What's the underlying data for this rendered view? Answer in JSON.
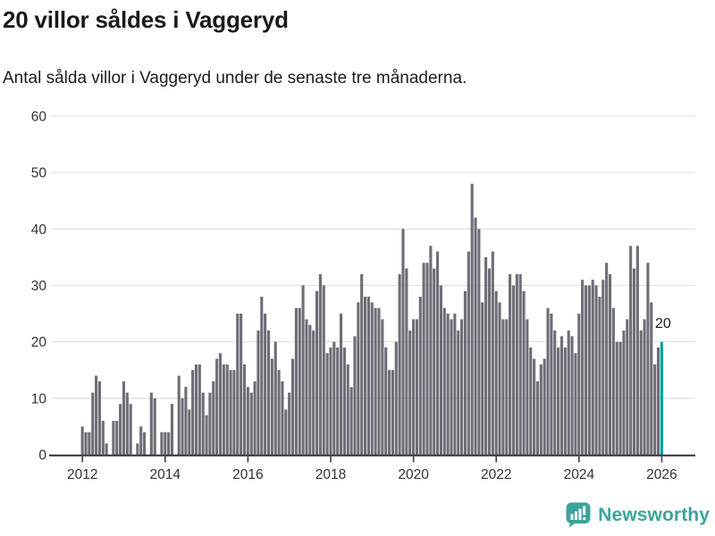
{
  "header": {
    "title": "20 villor såldes i Vaggeryd",
    "subtitle": "Antal sålda villor i Vaggeryd under de senaste tre månaderna."
  },
  "chart_data": {
    "type": "bar",
    "title": "20 villor såldes i Vaggeryd",
    "subtitle": "Antal sålda villor i Vaggeryd under de senaste tre månaderna.",
    "unit": "sålda villor (rullande 3 månader)",
    "start_month": "2012-01",
    "end_month": "2026-01",
    "values": [
      5,
      4,
      4,
      11,
      14,
      13,
      6,
      2,
      0,
      6,
      6,
      9,
      13,
      11,
      9,
      0,
      2,
      5,
      4,
      0,
      11,
      10,
      0,
      4,
      4,
      4,
      9,
      0,
      14,
      10,
      12,
      8,
      15,
      16,
      16,
      11,
      7,
      11,
      13,
      17,
      18,
      16,
      16,
      15,
      15,
      25,
      25,
      16,
      12,
      11,
      13,
      22,
      28,
      25,
      22,
      17,
      20,
      15,
      13,
      8,
      11,
      17,
      26,
      26,
      30,
      24,
      23,
      22,
      29,
      32,
      30,
      18,
      19,
      20,
      19,
      25,
      19,
      16,
      12,
      21,
      27,
      32,
      28,
      28,
      27,
      26,
      26,
      24,
      19,
      15,
      15,
      20,
      32,
      40,
      33,
      22,
      24,
      24,
      28,
      34,
      34,
      37,
      33,
      36,
      30,
      26,
      25,
      24,
      25,
      22,
      24,
      29,
      36,
      48,
      42,
      40,
      27,
      35,
      33,
      36,
      29,
      27,
      24,
      24,
      32,
      30,
      32,
      32,
      29,
      24,
      19,
      17,
      13,
      16,
      17,
      26,
      25,
      22,
      19,
      21,
      19,
      22,
      21,
      18,
      25,
      31,
      30,
      30,
      31,
      30,
      28,
      31,
      34,
      32,
      26,
      20,
      20,
      22,
      24,
      37,
      33,
      37,
      22,
      24,
      34,
      27,
      16,
      19,
      20
    ],
    "highlight_last": true,
    "annotation_label": "20",
    "yticks": [
      0,
      10,
      20,
      30,
      40,
      50,
      60
    ],
    "ylim": [
      0,
      60
    ],
    "xticks": [
      {
        "label": "2012",
        "year": 2012
      },
      {
        "label": "2014",
        "year": 2014
      },
      {
        "label": "2016",
        "year": 2016
      },
      {
        "label": "2018",
        "year": 2018
      },
      {
        "label": "2020",
        "year": 2020
      },
      {
        "label": "2022",
        "year": 2022
      },
      {
        "label": "2024",
        "year": 2024
      },
      {
        "label": "2026",
        "year": 2026
      }
    ],
    "grid": true,
    "colors": {
      "bar": "#6d6d77",
      "highlight": "#00a2a0",
      "grid": "#e3e3e3",
      "axis": "#3c3c3c",
      "tick_text": "#333333",
      "annotation_text": "#1a1a1a"
    }
  },
  "footer": {
    "brand": "Newsworthy",
    "brand_color": "#3ba49c"
  }
}
